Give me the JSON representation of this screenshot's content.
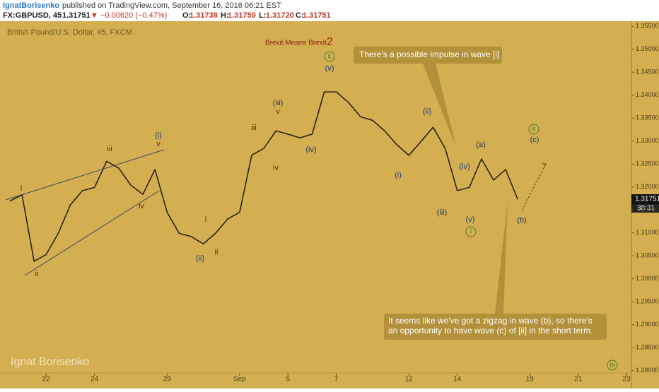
{
  "chart_data": {
    "type": "line",
    "header": {
      "author": "IgnatBorisenko",
      "published": "published on TradingView.com, September 16, 2016 06:21 EST",
      "symbol": "FX:GBPUSD, 45",
      "last": "1.31751",
      "arrow": "▼",
      "change": "−0.00620 (−0.47%)",
      "ohlc": [
        "O:",
        "1.31738",
        "H:",
        "1.31759",
        "L:",
        "1.31720",
        "C:",
        "1.31751"
      ]
    },
    "title": "British Pound/U.S. Dollar, 45, FXCM",
    "subtitle": "Brexit Means Brexit",
    "subtitle_number": "2",
    "watermark": "Ignat Borisenko",
    "callouts": [
      "There's a possible impulse in wave [i]",
      "It seems like we've got a zigzag in wave (b), so there's",
      "an opportunity to have wave (c) of [ii] in the short term."
    ],
    "price_label": "1.31751",
    "countdown": "38:31",
    "wave_labels": [
      "i",
      "ii",
      "iii",
      "iv",
      "(i)",
      "v",
      "(ii)",
      "i",
      "ii",
      "iii",
      "iv",
      "(iii)",
      "v",
      "(iv)",
      "(v)",
      "c",
      "(i)",
      "(ii)",
      "(iii)",
      "(iv)",
      "(v)",
      "i",
      "(a)",
      "(b)",
      "(c)",
      "ii",
      "iii"
    ],
    "categories": [
      null,
      null,
      null,
      "22",
      null,
      null,
      null,
      "24",
      null,
      null,
      null,
      null,
      null,
      "29",
      null,
      null,
      null,
      null,
      null,
      "Sep",
      null,
      null,
      null,
      "5",
      null,
      null,
      null,
      "7",
      null,
      null,
      null,
      null,
      null,
      "12",
      null,
      null,
      null,
      "14",
      null,
      null,
      null,
      null,
      null,
      "19",
      null,
      null,
      null,
      "21",
      null,
      null,
      null,
      "23"
    ],
    "values": [
      1.3169,
      1.3183,
      1.3038,
      1.3053,
      1.3099,
      1.3161,
      1.3192,
      1.3199,
      1.3256,
      1.3241,
      1.3204,
      1.3184,
      1.3238,
      1.3145,
      1.3099,
      1.3092,
      1.3076,
      1.3099,
      1.313,
      1.3145,
      1.3269,
      1.3284,
      1.3322,
      1.3315,
      1.3307,
      1.3315,
      1.3407,
      1.3407,
      1.3384,
      1.3353,
      1.3345,
      1.3322,
      1.3292,
      1.3269,
      1.3299,
      1.333,
      1.3284,
      1.3192,
      1.3199,
      1.3261,
      1.3215,
      1.3238,
      1.3173,
      null,
      null,
      null,
      null,
      null,
      null,
      null,
      null,
      null
    ],
    "color": "#2a2416",
    "ylim": [
      1.2795,
      1.3561
    ],
    "yticks": [
      {
        "value": 1.28,
        "label": "1.28000"
      },
      {
        "value": 1.285,
        "label": "1.28500"
      },
      {
        "value": 1.29,
        "label": "1.29000"
      },
      {
        "value": 1.295,
        "label": "1.29500"
      },
      {
        "value": 1.3,
        "label": "1.30000"
      },
      {
        "value": 1.305,
        "label": "1.30500"
      },
      {
        "value": 1.31,
        "label": "1.31000"
      },
      {
        "value": 1.315,
        "label": "1.31500"
      },
      {
        "value": 1.32,
        "label": "1.32000"
      },
      {
        "value": 1.325,
        "label": "1.32500"
      },
      {
        "value": 1.33,
        "label": "1.33000"
      },
      {
        "value": 1.335,
        "label": "1.33500"
      },
      {
        "value": 1.34,
        "label": "1.34000"
      },
      {
        "value": 1.345,
        "label": "1.34500"
      },
      {
        "value": 1.35,
        "label": "1.35000"
      },
      {
        "value": 1.355,
        "label": "1.35500"
      }
    ]
  }
}
